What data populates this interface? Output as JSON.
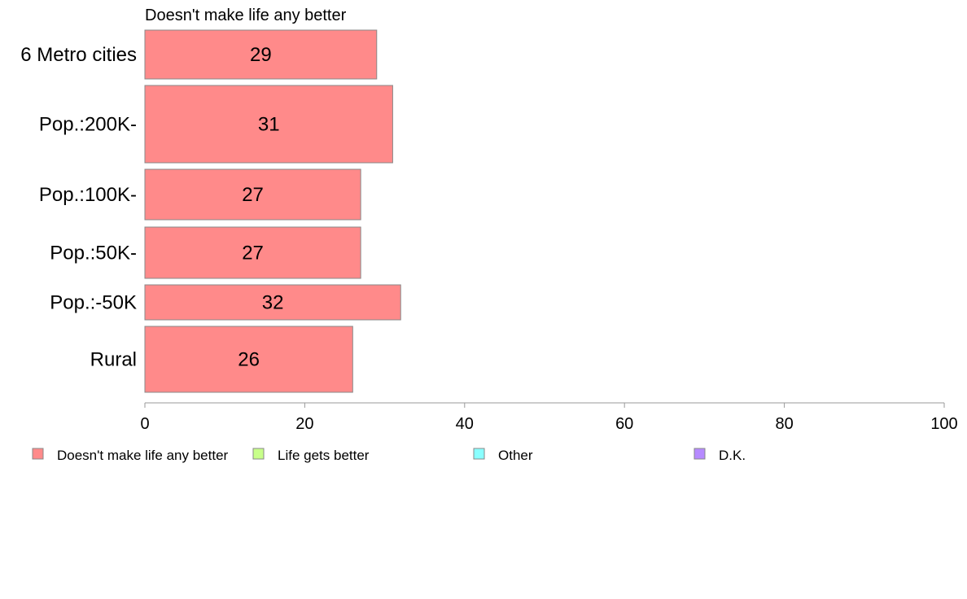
{
  "chart_data": {
    "type": "bar",
    "orientation": "horizontal",
    "title": "Doesn't make life any better",
    "categories": [
      "6 Metro cities",
      "Pop.:200K-",
      "Pop.:100K-",
      "Pop.:50K-",
      "Pop.:-50K",
      "Rural"
    ],
    "series": [
      {
        "name": "Doesn't make life any better",
        "values": [
          29,
          31,
          27,
          27,
          32,
          26
        ],
        "color": "#ff8a8a"
      }
    ],
    "value_labels": [
      "29",
      "31",
      "27",
      "27",
      "32",
      "26"
    ],
    "xlim": [
      0,
      100
    ],
    "xticks": [
      0,
      20,
      40,
      60,
      80,
      100
    ],
    "xtick_labels": [
      "0",
      "20",
      "40",
      "60",
      "80",
      "100"
    ],
    "grid": false,
    "legend": {
      "placement": "bottom",
      "entries": [
        {
          "label": "Doesn't make life any better",
          "color": "#ff8a8a"
        },
        {
          "label": "Life gets better",
          "color": "#c8ff8a"
        },
        {
          "label": "Other",
          "color": "#8affff"
        },
        {
          "label": "D.K.",
          "color": "#b68aff"
        }
      ]
    }
  }
}
